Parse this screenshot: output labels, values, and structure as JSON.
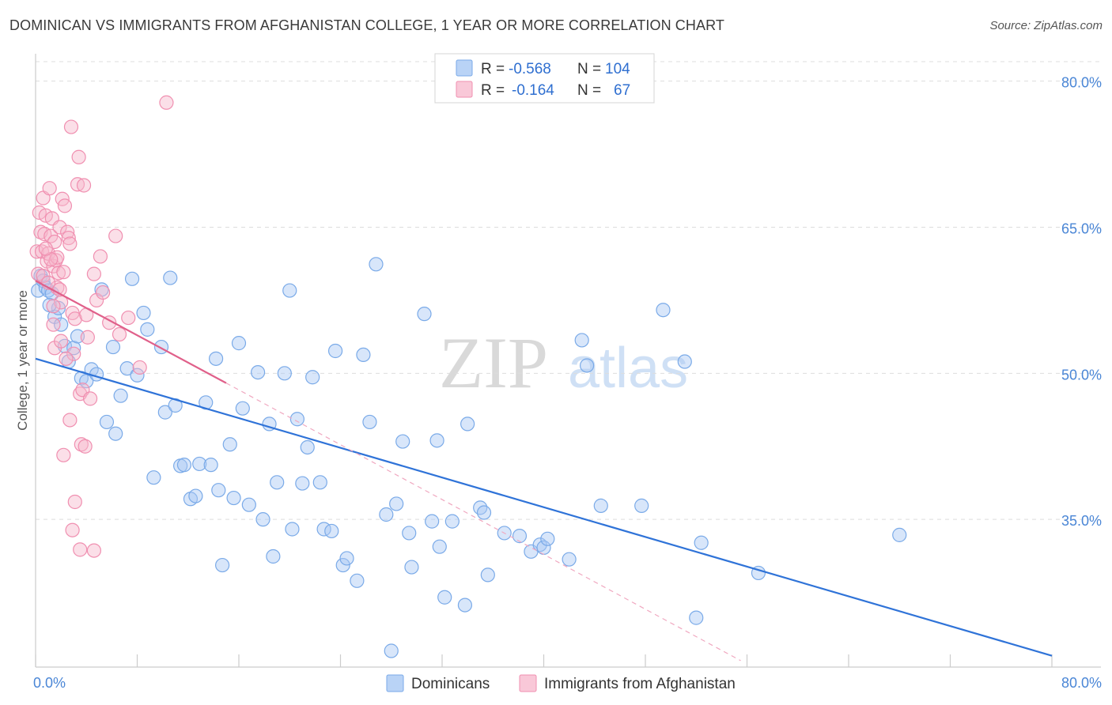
{
  "title": "DOMINICAN VS IMMIGRANTS FROM AFGHANISTAN COLLEGE, 1 YEAR OR MORE CORRELATION CHART",
  "source": "Source: ZipAtlas.com",
  "watermark": {
    "zip": "ZIP",
    "atlas": "atlas"
  },
  "legend": {
    "rows": [
      {
        "r_label": "R = ",
        "r_value": "-0.568",
        "n_label": "N = ",
        "n_value": "104",
        "color": "#7aaae8"
      },
      {
        "r_label": "R = ",
        "r_value": "-0.164",
        "n_label": "N = ",
        "n_value": "67",
        "color": "#f08fb0"
      }
    ]
  },
  "colors": {
    "blue": "#2f73d8",
    "pink": "#e0608a",
    "blue_fill": "#a9c8f3",
    "pink_fill": "#f6b8cc",
    "grid": "#dddddd"
  },
  "chart_data": {
    "type": "scatter",
    "title": "DOMINICAN VS IMMIGRANTS FROM AFGHANISTAN COLLEGE, 1 YEAR OR MORE CORRELATION CHART",
    "xlabel": "",
    "ylabel": "College, 1 year or more",
    "xlim": [
      0,
      80
    ],
    "ylim": [
      20,
      82
    ],
    "x_tick_labels": [
      "0.0%",
      "80.0%"
    ],
    "y_tick_labels": [
      {
        "value": 80,
        "label": "80.0%"
      },
      {
        "value": 65,
        "label": "65.0%"
      },
      {
        "value": 50,
        "label": "50.0%"
      },
      {
        "value": 35,
        "label": "35.0%"
      }
    ],
    "series": [
      {
        "name": "Dominicans",
        "color": "#7aaae8",
        "trend": {
          "x": [
            0,
            80
          ],
          "y": [
            51.5,
            21.0
          ]
        },
        "points": [
          [
            0.2,
            58.5
          ],
          [
            0.4,
            60
          ],
          [
            0.6,
            59.5
          ],
          [
            0.8,
            58.8
          ],
          [
            1.0,
            58.5
          ],
          [
            1.3,
            58.2
          ],
          [
            1.5,
            55.8
          ],
          [
            1.8,
            56.7
          ],
          [
            2.0,
            55
          ],
          [
            2.3,
            52.8
          ],
          [
            2.6,
            51.2
          ],
          [
            3.0,
            52.6
          ],
          [
            3.3,
            53.8
          ],
          [
            3.6,
            49.5
          ],
          [
            4.0,
            49.2
          ],
          [
            4.4,
            50.4
          ],
          [
            4.8,
            49.9
          ],
          [
            5.2,
            58.6
          ],
          [
            5.6,
            45
          ],
          [
            6.1,
            52.7
          ],
          [
            6.3,
            43.8
          ],
          [
            6.7,
            47.7
          ],
          [
            7.2,
            50.5
          ],
          [
            7.6,
            59.7
          ],
          [
            8.0,
            49.8
          ],
          [
            8.5,
            56.2
          ],
          [
            8.8,
            54.5
          ],
          [
            9.3,
            39.3
          ],
          [
            9.9,
            52.7
          ],
          [
            10.2,
            46
          ],
          [
            10.6,
            59.8
          ],
          [
            11.0,
            46.7
          ],
          [
            11.4,
            40.5
          ],
          [
            11.7,
            40.6
          ],
          [
            12.2,
            37.1
          ],
          [
            12.6,
            37.4
          ],
          [
            12.9,
            40.7
          ],
          [
            13.4,
            47
          ],
          [
            13.8,
            40.6
          ],
          [
            14.2,
            51.5
          ],
          [
            14.4,
            38
          ],
          [
            14.7,
            30.3
          ],
          [
            15.3,
            42.7
          ],
          [
            15.6,
            37.2
          ],
          [
            16.0,
            53.1
          ],
          [
            16.3,
            46.4
          ],
          [
            16.8,
            36.5
          ],
          [
            17.5,
            50.1
          ],
          [
            17.9,
            35
          ],
          [
            18.4,
            44.8
          ],
          [
            18.7,
            31.2
          ],
          [
            19.0,
            38.8
          ],
          [
            19.6,
            50
          ],
          [
            20.0,
            58.5
          ],
          [
            20.2,
            34
          ],
          [
            20.6,
            45.3
          ],
          [
            21.0,
            38.7
          ],
          [
            21.4,
            42.4
          ],
          [
            21.8,
            49.6
          ],
          [
            22.4,
            38.8
          ],
          [
            22.7,
            34
          ],
          [
            23.3,
            33.8
          ],
          [
            23.6,
            52.3
          ],
          [
            24.2,
            30.3
          ],
          [
            24.5,
            31
          ],
          [
            25.3,
            28.7
          ],
          [
            25.8,
            51.9
          ],
          [
            26.3,
            45
          ],
          [
            26.8,
            61.2
          ],
          [
            27.6,
            35.5
          ],
          [
            28.0,
            21.5
          ],
          [
            28.4,
            36.6
          ],
          [
            28.9,
            43
          ],
          [
            29.4,
            33.6
          ],
          [
            29.6,
            30.1
          ],
          [
            30.6,
            56.1
          ],
          [
            31.2,
            34.8
          ],
          [
            31.6,
            43.1
          ],
          [
            31.8,
            32.2
          ],
          [
            32.2,
            27
          ],
          [
            32.8,
            34.8
          ],
          [
            33.8,
            26.2
          ],
          [
            34.0,
            44.8
          ],
          [
            35.0,
            36.2
          ],
          [
            35.3,
            35.7
          ],
          [
            35.6,
            29.3
          ],
          [
            36.9,
            33.6
          ],
          [
            38.1,
            33.3
          ],
          [
            39.0,
            31.7
          ],
          [
            39.7,
            32.4
          ],
          [
            40.0,
            32.1
          ],
          [
            40.3,
            33
          ],
          [
            42.0,
            30.9
          ],
          [
            43.0,
            53.4
          ],
          [
            43.4,
            50.8
          ],
          [
            44.5,
            36.4
          ],
          [
            47.7,
            36.4
          ],
          [
            49.4,
            56.5
          ],
          [
            51.1,
            51.2
          ],
          [
            52.0,
            24.9
          ],
          [
            52.4,
            32.6
          ],
          [
            56.9,
            29.5
          ],
          [
            68.0,
            33.4
          ],
          [
            1.1,
            57
          ]
        ]
      },
      {
        "name": "Immigrants from Afghanistan",
        "color": "#f08fb0",
        "trend": {
          "x": [
            0,
            15
          ],
          "y": [
            59.5,
            49.0
          ]
        },
        "trend_extension": {
          "x": [
            15,
            55.5
          ],
          "y": [
            49.0,
            20.5
          ]
        },
        "points": [
          [
            0.1,
            62.5
          ],
          [
            0.2,
            60.2
          ],
          [
            0.3,
            66.5
          ],
          [
            0.4,
            64.5
          ],
          [
            0.5,
            62.5
          ],
          [
            0.6,
            68
          ],
          [
            0.7,
            64.3
          ],
          [
            0.8,
            66.2
          ],
          [
            0.9,
            61.5
          ],
          [
            1.0,
            62.3
          ],
          [
            1.1,
            69
          ],
          [
            1.2,
            64.1
          ],
          [
            1.3,
            65.9
          ],
          [
            1.4,
            61
          ],
          [
            1.5,
            63.5
          ],
          [
            1.6,
            61.6
          ],
          [
            1.7,
            61.9
          ],
          [
            1.8,
            60.3
          ],
          [
            1.9,
            65
          ],
          [
            2.0,
            57.3
          ],
          [
            2.1,
            67.9
          ],
          [
            2.2,
            60.4
          ],
          [
            2.3,
            67.2
          ],
          [
            2.5,
            64.5
          ],
          [
            2.6,
            63.9
          ],
          [
            2.7,
            63.3
          ],
          [
            2.8,
            75.3
          ],
          [
            2.9,
            56.2
          ],
          [
            3.0,
            52
          ],
          [
            3.1,
            55.6
          ],
          [
            3.3,
            69.4
          ],
          [
            3.4,
            72.2
          ],
          [
            3.5,
            47.9
          ],
          [
            3.6,
            42.7
          ],
          [
            3.7,
            48.3
          ],
          [
            3.8,
            69.3
          ],
          [
            4.0,
            56
          ],
          [
            4.1,
            53.7
          ],
          [
            4.3,
            47.4
          ],
          [
            4.6,
            60.2
          ],
          [
            4.8,
            57.5
          ],
          [
            5.1,
            62
          ],
          [
            5.3,
            58.3
          ],
          [
            5.8,
            55.2
          ],
          [
            6.3,
            64.1
          ],
          [
            6.6,
            54
          ],
          [
            7.3,
            55.7
          ],
          [
            8.2,
            50.6
          ],
          [
            10.3,
            77.8
          ],
          [
            1.4,
            55
          ],
          [
            2.4,
            51.5
          ],
          [
            1.5,
            52.6
          ],
          [
            2.7,
            45.2
          ],
          [
            2.2,
            41.6
          ],
          [
            3.1,
            36.8
          ],
          [
            3.9,
            42.5
          ],
          [
            2.9,
            33.9
          ],
          [
            3.5,
            31.9
          ],
          [
            4.6,
            31.8
          ],
          [
            1.2,
            61.7
          ],
          [
            1.7,
            58.8
          ],
          [
            2.0,
            53.3
          ],
          [
            1.4,
            56.9
          ],
          [
            0.8,
            62.8
          ],
          [
            0.6,
            60.0
          ],
          [
            1.0,
            59.3
          ],
          [
            1.9,
            58.6
          ]
        ]
      }
    ]
  },
  "bottom_legend": [
    {
      "label": "Dominicans",
      "color": "#7aaae8"
    },
    {
      "label": "Immigrants from Afghanistan",
      "color": "#f08fb0"
    }
  ]
}
